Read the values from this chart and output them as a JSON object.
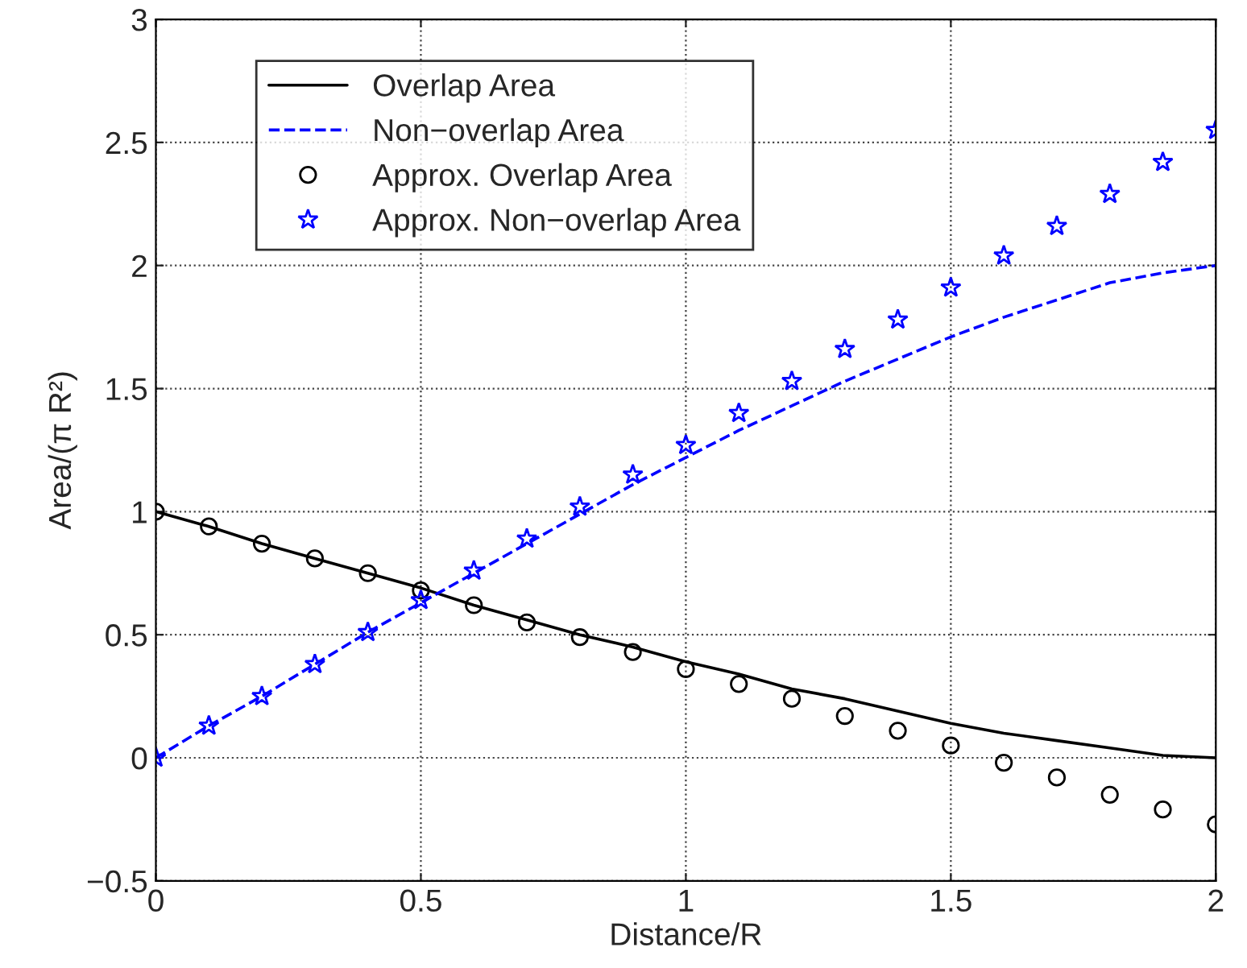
{
  "chart_data": {
    "type": "line",
    "xlabel": "Distance/R",
    "ylabel": "Area/(π R²)",
    "x": [
      0,
      0.1,
      0.2,
      0.3,
      0.4,
      0.5,
      0.6,
      0.7,
      0.8,
      0.9,
      1.0,
      1.1,
      1.2,
      1.3,
      1.4,
      1.5,
      1.6,
      1.7,
      1.8,
      1.9,
      2.0
    ],
    "series": [
      {
        "name": "Overlap Area",
        "color": "#000000",
        "line_style": "solid",
        "marker": "none",
        "values": [
          1,
          0.94,
          0.87,
          0.81,
          0.75,
          0.69,
          0.62,
          0.56,
          0.5,
          0.45,
          0.39,
          0.34,
          0.28,
          0.24,
          0.19,
          0.14,
          0.1,
          0.07,
          0.04,
          0.01,
          0
        ]
      },
      {
        "name": "Non−overlap Area",
        "color": "#0000ff",
        "line_style": "dashed",
        "marker": "none",
        "values": [
          0,
          0.13,
          0.25,
          0.38,
          0.51,
          0.63,
          0.75,
          0.87,
          0.99,
          1.11,
          1.22,
          1.33,
          1.43,
          1.53,
          1.62,
          1.71,
          1.79,
          1.86,
          1.93,
          1.97,
          2
        ]
      },
      {
        "name": "Approx. Overlap Area",
        "type": "scatter",
        "color": "#000000",
        "marker": "circle",
        "values": [
          1,
          0.94,
          0.87,
          0.81,
          0.75,
          0.68,
          0.62,
          0.55,
          0.49,
          0.43,
          0.36,
          0.3,
          0.24,
          0.17,
          0.11,
          0.05,
          -0.02,
          -0.08,
          -0.15,
          -0.21,
          -0.27
        ]
      },
      {
        "name": "Approx. Non−overlap Area",
        "type": "scatter",
        "color": "#0000ff",
        "marker": "star",
        "values": [
          0,
          0.13,
          0.25,
          0.38,
          0.51,
          0.64,
          0.76,
          0.89,
          1.02,
          1.15,
          1.27,
          1.4,
          1.53,
          1.66,
          1.78,
          1.91,
          2.04,
          2.16,
          2.29,
          2.42,
          2.55
        ]
      }
    ],
    "xlim": [
      0,
      2
    ],
    "xticks": [
      0,
      0.5,
      1,
      1.5,
      2
    ],
    "ylim": [
      -0.5,
      3
    ],
    "yticks": [
      {
        "value": -0.5,
        "label": "−0.5"
      },
      0,
      0.5,
      1,
      1.5,
      2,
      2.5,
      3
    ],
    "grid": true,
    "legend": "top left"
  }
}
